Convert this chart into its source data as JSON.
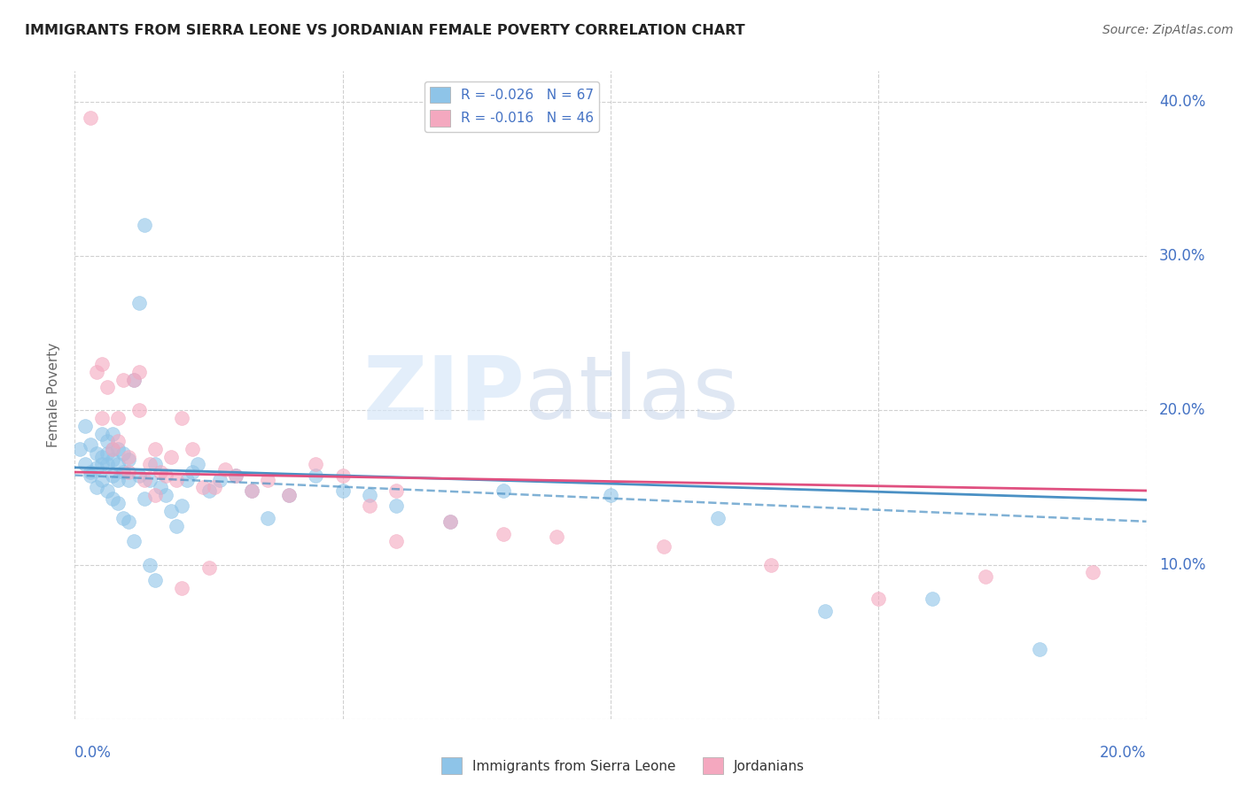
{
  "title": "IMMIGRANTS FROM SIERRA LEONE VS JORDANIAN FEMALE POVERTY CORRELATION CHART",
  "source": "Source: ZipAtlas.com",
  "ylabel": "Female Poverty",
  "color_blue": "#8ec4e8",
  "color_pink": "#f4a8bf",
  "color_blue_line": "#4a90c4",
  "color_pink_line": "#e05080",
  "xlim": [
    0.0,
    0.2
  ],
  "ylim": [
    0.0,
    0.42
  ],
  "blue_scatter_x": [
    0.001,
    0.002,
    0.002,
    0.003,
    0.003,
    0.003,
    0.004,
    0.004,
    0.004,
    0.005,
    0.005,
    0.005,
    0.005,
    0.006,
    0.006,
    0.006,
    0.006,
    0.007,
    0.007,
    0.007,
    0.007,
    0.007,
    0.008,
    0.008,
    0.008,
    0.008,
    0.009,
    0.009,
    0.009,
    0.01,
    0.01,
    0.01,
    0.011,
    0.011,
    0.012,
    0.012,
    0.013,
    0.013,
    0.014,
    0.014,
    0.015,
    0.015,
    0.016,
    0.017,
    0.018,
    0.019,
    0.02,
    0.021,
    0.022,
    0.023,
    0.025,
    0.027,
    0.03,
    0.033,
    0.036,
    0.04,
    0.045,
    0.05,
    0.055,
    0.06,
    0.07,
    0.08,
    0.1,
    0.12,
    0.14,
    0.16,
    0.18
  ],
  "blue_scatter_y": [
    0.175,
    0.19,
    0.165,
    0.178,
    0.16,
    0.158,
    0.172,
    0.163,
    0.15,
    0.185,
    0.17,
    0.165,
    0.155,
    0.18,
    0.172,
    0.165,
    0.148,
    0.185,
    0.175,
    0.168,
    0.158,
    0.143,
    0.175,
    0.165,
    0.155,
    0.14,
    0.172,
    0.16,
    0.13,
    0.168,
    0.155,
    0.128,
    0.22,
    0.115,
    0.27,
    0.158,
    0.32,
    0.143,
    0.155,
    0.1,
    0.165,
    0.09,
    0.15,
    0.145,
    0.135,
    0.125,
    0.138,
    0.155,
    0.16,
    0.165,
    0.148,
    0.155,
    0.158,
    0.148,
    0.13,
    0.145,
    0.158,
    0.148,
    0.145,
    0.138,
    0.128,
    0.148,
    0.145,
    0.13,
    0.07,
    0.078,
    0.045
  ],
  "pink_scatter_x": [
    0.003,
    0.004,
    0.005,
    0.005,
    0.006,
    0.007,
    0.008,
    0.008,
    0.009,
    0.01,
    0.01,
    0.011,
    0.012,
    0.012,
    0.013,
    0.014,
    0.015,
    0.015,
    0.016,
    0.017,
    0.018,
    0.019,
    0.02,
    0.022,
    0.024,
    0.026,
    0.028,
    0.03,
    0.033,
    0.036,
    0.04,
    0.045,
    0.05,
    0.055,
    0.06,
    0.07,
    0.08,
    0.09,
    0.11,
    0.13,
    0.15,
    0.17,
    0.19,
    0.06,
    0.02,
    0.025
  ],
  "pink_scatter_y": [
    0.39,
    0.225,
    0.195,
    0.23,
    0.215,
    0.175,
    0.195,
    0.18,
    0.22,
    0.17,
    0.16,
    0.22,
    0.225,
    0.2,
    0.155,
    0.165,
    0.175,
    0.145,
    0.16,
    0.158,
    0.17,
    0.155,
    0.195,
    0.175,
    0.15,
    0.15,
    0.162,
    0.158,
    0.148,
    0.155,
    0.145,
    0.165,
    0.158,
    0.138,
    0.148,
    0.128,
    0.12,
    0.118,
    0.112,
    0.1,
    0.078,
    0.092,
    0.095,
    0.115,
    0.085,
    0.098
  ],
  "blue_regress": [
    0.163,
    0.142
  ],
  "pink_regress": [
    0.16,
    0.148
  ]
}
